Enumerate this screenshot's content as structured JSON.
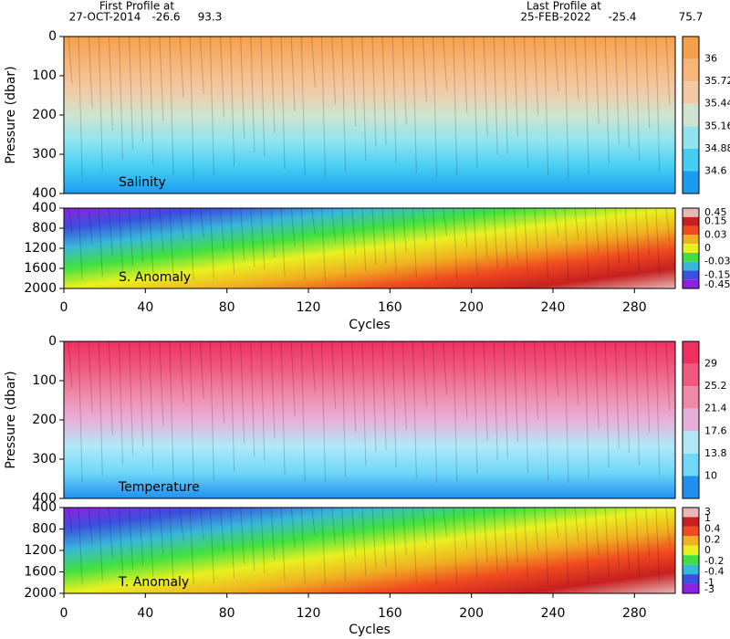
{
  "header": {
    "first_title": "First Profile at",
    "first_date": "27-OCT-2014",
    "first_lat": -26.6,
    "first_lon": 93.3,
    "last_title": "Last Profile at",
    "last_date": "25-FEB-2022",
    "last_lat": -25.4,
    "last_lon": 75.7
  },
  "xaxis": {
    "label": "Cycles",
    "xlim": [
      0,
      300
    ],
    "xticks": [
      0,
      40,
      80,
      120,
      160,
      200,
      240,
      280
    ]
  },
  "panels": [
    {
      "label": "Salinity",
      "ylabel": "Pressure (dbar)",
      "ylim": [
        0,
        400
      ],
      "yticks": [
        0,
        100,
        200,
        300,
        400
      ],
      "colorbar": [
        36,
        35.72,
        35.44,
        35.16,
        34.88,
        34.6
      ],
      "colors": [
        "#f5a04a",
        "#f7b578",
        "#f2c9a2",
        "#cfe3cf",
        "#8fe4f0",
        "#45cdf2",
        "#1c9cf0"
      ]
    },
    {
      "label": "S. Anomaly",
      "ylim": [
        400,
        2000
      ],
      "yticks": [
        400,
        800,
        1200,
        1600,
        2000
      ],
      "colorbar": [
        0.45,
        0.15,
        0.03,
        0,
        -0.03,
        -0.15,
        -0.45
      ],
      "colors": [
        "#e8b8b8",
        "#c82020",
        "#f04a20",
        "#f0b020",
        "#e8f020",
        "#40e040",
        "#38b8d8",
        "#3c50e0",
        "#9020e0"
      ]
    },
    {
      "label": "Temperature",
      "ylabel": "Pressure (dbar)",
      "ylim": [
        0,
        400
      ],
      "yticks": [
        0,
        100,
        200,
        300,
        400
      ],
      "colorbar": [
        29,
        25.2,
        21.4,
        17.6,
        13.8,
        10
      ],
      "colors": [
        "#f03060",
        "#f05880",
        "#f088a8",
        "#e8b0d8",
        "#b0e8f8",
        "#70d8f8",
        "#2090f0"
      ]
    },
    {
      "label": "T. Anomaly",
      "ylim": [
        400,
        2000
      ],
      "yticks": [
        400,
        800,
        1200,
        1600,
        2000
      ],
      "colorbar": [
        3,
        1,
        0.4,
        0.2,
        0,
        -0.2,
        -0.4,
        -1,
        -3
      ],
      "colors": [
        "#e8b8b8",
        "#c82020",
        "#f04a20",
        "#f0b020",
        "#e8f020",
        "#40e040",
        "#38b8d8",
        "#3c50e0",
        "#9020e0"
      ]
    }
  ]
}
